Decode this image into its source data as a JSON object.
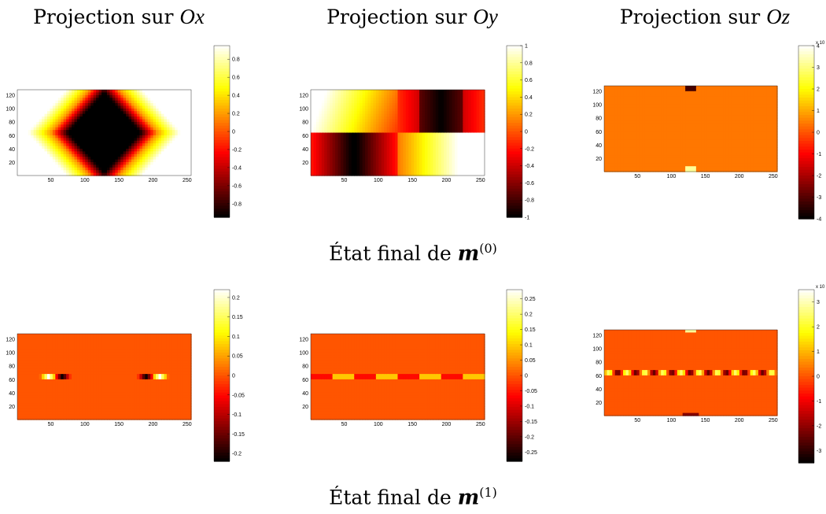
{
  "column_titles": [
    {
      "text": "Projection sur ",
      "var": "Ox"
    },
    {
      "text": "Projection sur ",
      "var": "Oy"
    },
    {
      "text": "Projection sur ",
      "var": "Oz"
    }
  ],
  "row_captions": [
    {
      "text": "État final de ",
      "var": "m",
      "sup": "(0)"
    },
    {
      "text": "État final de ",
      "var": "m",
      "sup": "(1)"
    }
  ],
  "colormap": "hot",
  "chart_data": [
    {
      "type": "heatmap",
      "row": 0,
      "col": 0,
      "pattern": "x0",
      "xlim": [
        1,
        256
      ],
      "ylim": [
        1,
        128
      ],
      "x_ticks": [
        "50",
        "100",
        "150",
        "200",
        "250"
      ],
      "y_ticks": [
        "20",
        "40",
        "60",
        "80",
        "100",
        "120"
      ],
      "clim": [
        -0.95,
        0.95
      ],
      "colorbar_ticks": [
        "0.8",
        "0.6",
        "0.4",
        "0.2",
        "0",
        "-0.2",
        "-0.4",
        "-0.6",
        "-0.8"
      ],
      "colorbar_exponent": ""
    },
    {
      "type": "heatmap",
      "row": 0,
      "col": 1,
      "pattern": "y0",
      "xlim": [
        1,
        256
      ],
      "ylim": [
        1,
        128
      ],
      "x_ticks": [
        "50",
        "100",
        "150",
        "200",
        "250"
      ],
      "y_ticks": [
        "20",
        "40",
        "60",
        "80",
        "100",
        "120"
      ],
      "clim": [
        -1,
        1
      ],
      "colorbar_ticks": [
        "1",
        "0.8",
        "0.6",
        "0.4",
        "0.2",
        "0",
        "-0.2",
        "-0.4",
        "-0.6",
        "-0.8",
        "-1"
      ],
      "colorbar_exponent": ""
    },
    {
      "type": "heatmap",
      "row": 0,
      "col": 2,
      "pattern": "z0",
      "xlim": [
        1,
        256
      ],
      "ylim": [
        1,
        128
      ],
      "x_ticks": [
        "50",
        "100",
        "150",
        "200",
        "250"
      ],
      "y_ticks": [
        "20",
        "40",
        "60",
        "80",
        "100",
        "120"
      ],
      "clim": [
        -4,
        4
      ],
      "colorbar_ticks": [
        "4",
        "3",
        "2",
        "1",
        "0",
        "-1",
        "-2",
        "-3",
        "-4"
      ],
      "colorbar_exponent": "x 10"
    },
    {
      "type": "heatmap",
      "row": 1,
      "col": 0,
      "pattern": "x1",
      "xlim": [
        1,
        256
      ],
      "ylim": [
        1,
        128
      ],
      "x_ticks": [
        "50",
        "100",
        "150",
        "200",
        "250"
      ],
      "y_ticks": [
        "20",
        "40",
        "60",
        "80",
        "100",
        "120"
      ],
      "clim": [
        -0.22,
        0.22
      ],
      "colorbar_ticks": [
        "0.2",
        "0.15",
        "0.1",
        "0.05",
        "0",
        "-0.05",
        "-0.1",
        "-0.15",
        "-0.2"
      ],
      "colorbar_exponent": ""
    },
    {
      "type": "heatmap",
      "row": 1,
      "col": 1,
      "pattern": "y1",
      "xlim": [
        1,
        256
      ],
      "ylim": [
        1,
        128
      ],
      "x_ticks": [
        "50",
        "100",
        "150",
        "200",
        "250"
      ],
      "y_ticks": [
        "20",
        "40",
        "60",
        "80",
        "100",
        "120"
      ],
      "clim": [
        -0.28,
        0.28
      ],
      "colorbar_ticks": [
        "0.25",
        "0.2",
        "0.15",
        "0.1",
        "0.05",
        "0",
        "-0.05",
        "-0.1",
        "-0.15",
        "-0.2",
        "-0.25"
      ],
      "colorbar_exponent": ""
    },
    {
      "type": "heatmap",
      "row": 1,
      "col": 2,
      "pattern": "z1",
      "xlim": [
        1,
        256
      ],
      "ylim": [
        1,
        128
      ],
      "x_ticks": [
        "50",
        "100",
        "150",
        "200",
        "250"
      ],
      "y_ticks": [
        "20",
        "40",
        "60",
        "80",
        "100",
        "120"
      ],
      "clim": [
        -3.5,
        3.5
      ],
      "colorbar_ticks": [
        "3",
        "2",
        "1",
        "0",
        "-1",
        "-2",
        "-3"
      ],
      "colorbar_exponent": "x 10"
    }
  ]
}
